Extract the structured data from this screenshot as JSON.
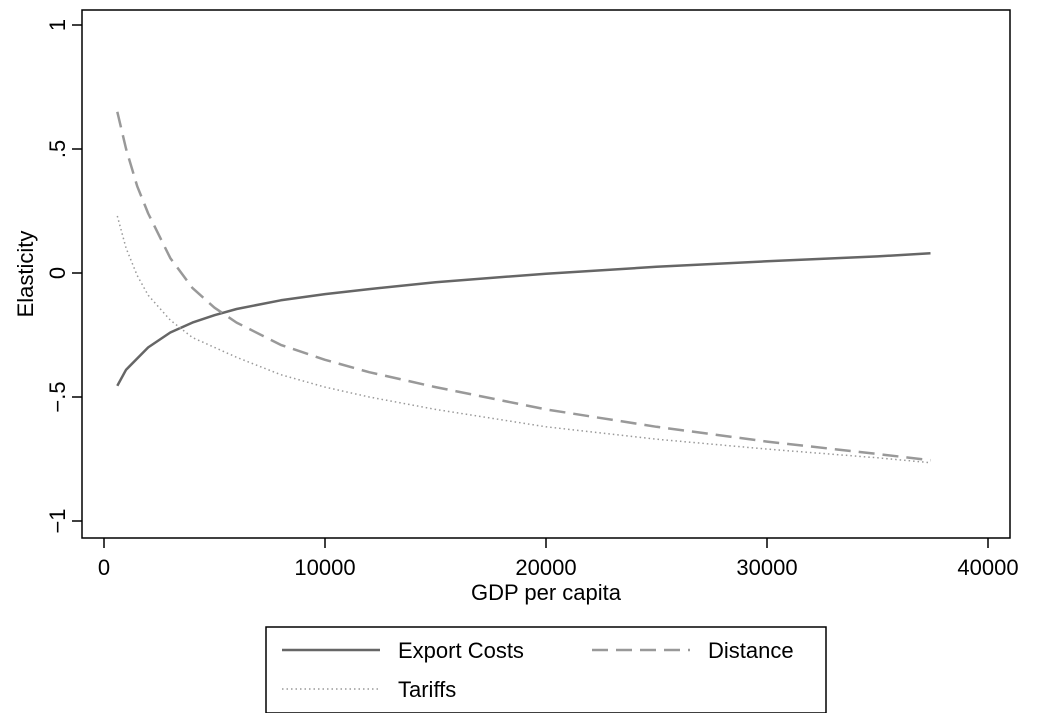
{
  "chart_data": {
    "type": "line",
    "title": "",
    "xlabel": "GDP per capita",
    "ylabel": "Elasticity",
    "xlim": [
      0,
      40000
    ],
    "ylim": [
      -1,
      1
    ],
    "x_ticks": [
      {
        "value": 0,
        "label": "0"
      },
      {
        "value": 10000,
        "label": "10000"
      },
      {
        "value": 20000,
        "label": "20000"
      },
      {
        "value": 30000,
        "label": "30000"
      },
      {
        "value": 40000,
        "label": "40000"
      }
    ],
    "y_ticks": [
      {
        "value": -1,
        "label": "−1"
      },
      {
        "value": -0.5,
        "label": "−.5"
      },
      {
        "value": 0,
        "label": "0"
      },
      {
        "value": 0.5,
        "label": ".5"
      },
      {
        "value": 1,
        "label": "1"
      }
    ],
    "grid": false,
    "legend_position": "bottom",
    "series": [
      {
        "name": "Export Costs",
        "color": "#666666",
        "style": "solid",
        "x": [
          600,
          1000,
          2000,
          3000,
          4000,
          5000,
          6000,
          8000,
          10000,
          12000,
          15000,
          20000,
          25000,
          30000,
          35000,
          37400
        ],
        "y": [
          -0.455,
          -0.39,
          -0.3,
          -0.24,
          -0.2,
          -0.17,
          -0.145,
          -0.11,
          -0.085,
          -0.065,
          -0.037,
          -0.003,
          0.025,
          0.047,
          0.067,
          0.08
        ]
      },
      {
        "name": "Distance",
        "color": "#999999",
        "style": "dashed",
        "x": [
          600,
          1000,
          1500,
          2000,
          3000,
          4000,
          5000,
          6000,
          8000,
          10000,
          12000,
          15000,
          20000,
          25000,
          30000,
          35000,
          37400
        ],
        "y": [
          0.65,
          0.5,
          0.35,
          0.24,
          0.06,
          -0.06,
          -0.14,
          -0.2,
          -0.29,
          -0.35,
          -0.4,
          -0.46,
          -0.55,
          -0.62,
          -0.68,
          -0.73,
          -0.755
        ]
      },
      {
        "name": "Tariffs",
        "color": "#999999",
        "style": "dotted",
        "x": [
          600,
          1000,
          1500,
          2000,
          3000,
          4000,
          5000,
          6000,
          8000,
          10000,
          12000,
          15000,
          20000,
          25000,
          30000,
          35000,
          37400
        ],
        "y": [
          0.23,
          0.1,
          -0.01,
          -0.09,
          -0.19,
          -0.26,
          -0.3,
          -0.34,
          -0.41,
          -0.46,
          -0.5,
          -0.55,
          -0.62,
          -0.67,
          -0.71,
          -0.745,
          -0.765
        ]
      }
    ]
  }
}
